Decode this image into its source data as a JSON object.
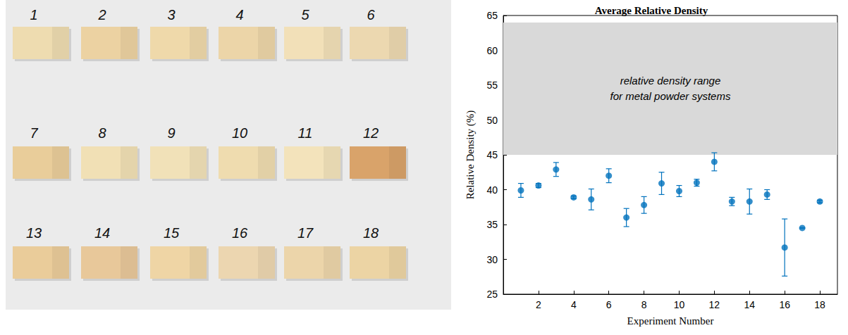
{
  "photo": {
    "labels": [
      "1",
      "2",
      "3",
      "4",
      "5",
      "6",
      "7",
      "8",
      "9",
      "10",
      "11",
      "12",
      "13",
      "14",
      "15",
      "16",
      "17",
      "18"
    ],
    "colors": [
      "#eedcb0",
      "#ecd2a2",
      "#efd9aa",
      "#ecd5a8",
      "#f2e0b8",
      "#ecd8b0",
      "#e9cd9a",
      "#f1e0b5",
      "#f1e1b8",
      "#efdcaf",
      "#f3e3bb",
      "#d9a36a",
      "#eacc9a",
      "#e8c89a",
      "#efd5a5",
      "#ecd6b0",
      "#ecd5aa",
      "#ecd4a4"
    ]
  },
  "chart_data": {
    "type": "scatter",
    "title": "Average Relative Density",
    "x_label": "Experiment Number",
    "y_label": "Relative Density (%)",
    "x": [
      1,
      2,
      3,
      4,
      5,
      6,
      7,
      8,
      9,
      10,
      11,
      12,
      13,
      14,
      15,
      16,
      17,
      18
    ],
    "values": [
      39.9,
      40.6,
      42.9,
      38.9,
      38.6,
      42.0,
      36.0,
      37.8,
      40.9,
      39.8,
      41.0,
      44.0,
      38.3,
      38.3,
      39.3,
      31.7,
      34.5,
      38.3
    ],
    "errors": [
      1.0,
      0.3,
      1.0,
      0.2,
      1.5,
      1.0,
      1.3,
      1.2,
      1.6,
      0.8,
      0.5,
      1.3,
      0.6,
      1.8,
      0.7,
      4.1,
      0,
      0.2
    ],
    "color": "#0072bd",
    "marker": "circle",
    "xlim": [
      0,
      19
    ],
    "xticks": [
      2,
      4,
      6,
      8,
      10,
      12,
      14,
      16,
      18
    ],
    "ylim": [
      25,
      65
    ],
    "yticks": [
      25,
      30,
      35,
      40,
      45,
      50,
      55,
      60,
      65
    ],
    "grid": false,
    "shaded_band": {
      "range": [
        45,
        64
      ],
      "label": "relative density range\nfor metal powder systems",
      "color": "#d9d9d9"
    }
  }
}
